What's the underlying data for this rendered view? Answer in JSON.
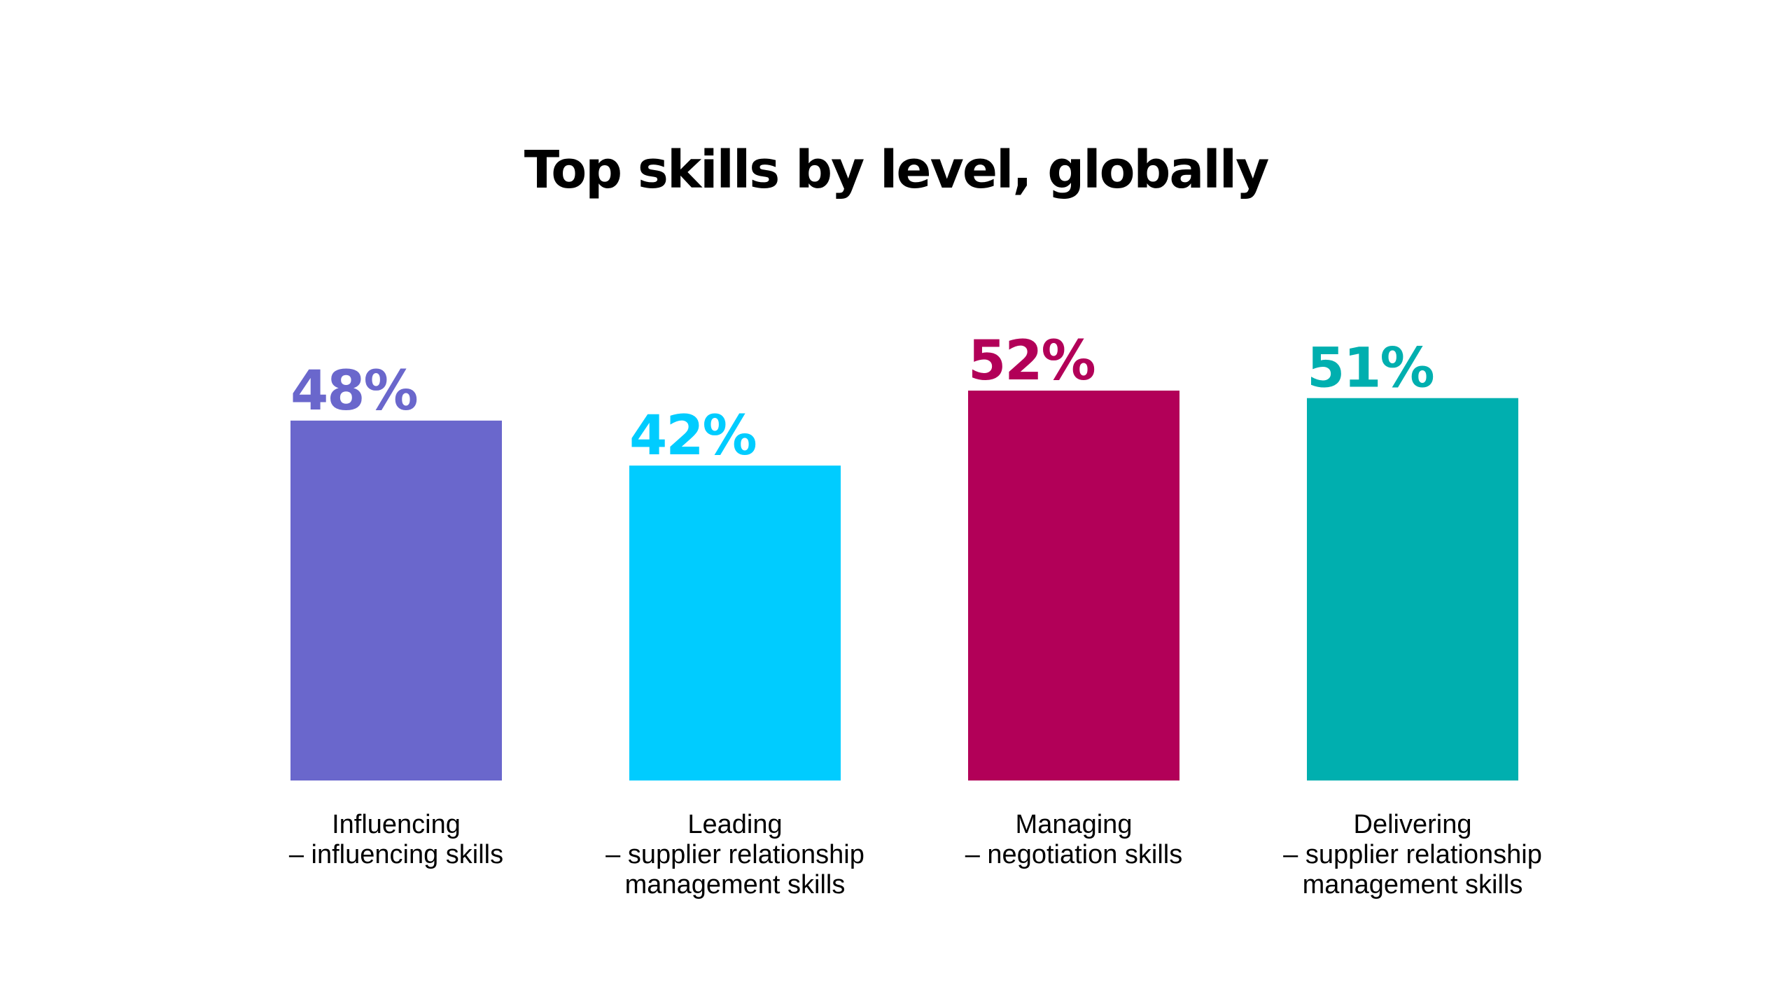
{
  "chart_data": {
    "type": "bar",
    "title": "Top skills by level, globally",
    "xlabel": "",
    "ylabel": "",
    "ylim": [
      0,
      52
    ],
    "grid": false,
    "categories": [
      [
        "Influencing",
        "– influencing skills"
      ],
      [
        "Leading",
        "– supplier relationship",
        "management skills"
      ],
      [
        "Managing",
        "– negotiation skills"
      ],
      [
        "Delivering",
        "– supplier relationship",
        "management skills"
      ]
    ],
    "values": [
      48,
      42,
      52,
      51
    ],
    "value_labels": [
      "48%",
      "42%",
      "52%",
      "51%"
    ],
    "colors": [
      "#6A67CC",
      "#00CCFF",
      "#B20058",
      "#00AFAF"
    ]
  }
}
